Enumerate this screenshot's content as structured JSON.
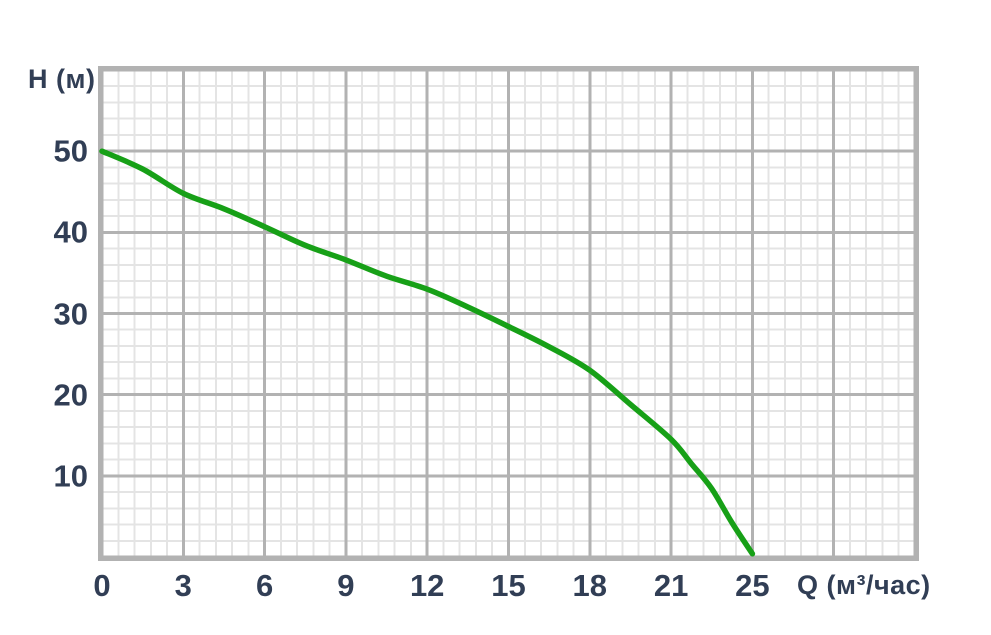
{
  "chart_data": {
    "type": "line",
    "title": "",
    "xlabel": "Q (м³/час)",
    "ylabel": "H (м)",
    "x_tick_labels": [
      "0",
      "3",
      "6",
      "9",
      "12",
      "15",
      "18",
      "21",
      "25"
    ],
    "x_tick_values": [
      0,
      3,
      6,
      9,
      12,
      15,
      18,
      21,
      25
    ],
    "y_tick_labels": [
      "10",
      "20",
      "30",
      "40",
      "50"
    ],
    "y_tick_values": [
      10,
      20,
      30,
      40,
      50
    ],
    "ylim": [
      0,
      60
    ],
    "grid": {
      "show": true,
      "x_major_cells": 10,
      "y_major_cells": 6,
      "minor_per_major": 5,
      "major_color": "#b2b2b2",
      "minor_color": "#e4e4e4"
    },
    "legend": {
      "show": false
    },
    "series": [
      {
        "name": "pump_head_curve",
        "color": "#17a017",
        "stroke_width": 5.5,
        "points": [
          [
            0,
            50
          ],
          [
            1.5,
            47.8
          ],
          [
            3,
            44.8
          ],
          [
            4.5,
            42.9
          ],
          [
            6,
            40.7
          ],
          [
            7.5,
            38.4
          ],
          [
            9,
            36.6
          ],
          [
            10.5,
            34.6
          ],
          [
            12,
            33.0
          ],
          [
            13.5,
            30.8
          ],
          [
            15,
            28.4
          ],
          [
            16.5,
            25.9
          ],
          [
            18,
            23.0
          ],
          [
            19.5,
            18.8
          ],
          [
            21,
            14.5
          ],
          [
            22,
            11.5
          ],
          [
            23,
            8.4
          ],
          [
            24,
            4.2
          ],
          [
            25,
            0.4
          ]
        ]
      }
    ],
    "text_color": "#313e55"
  }
}
